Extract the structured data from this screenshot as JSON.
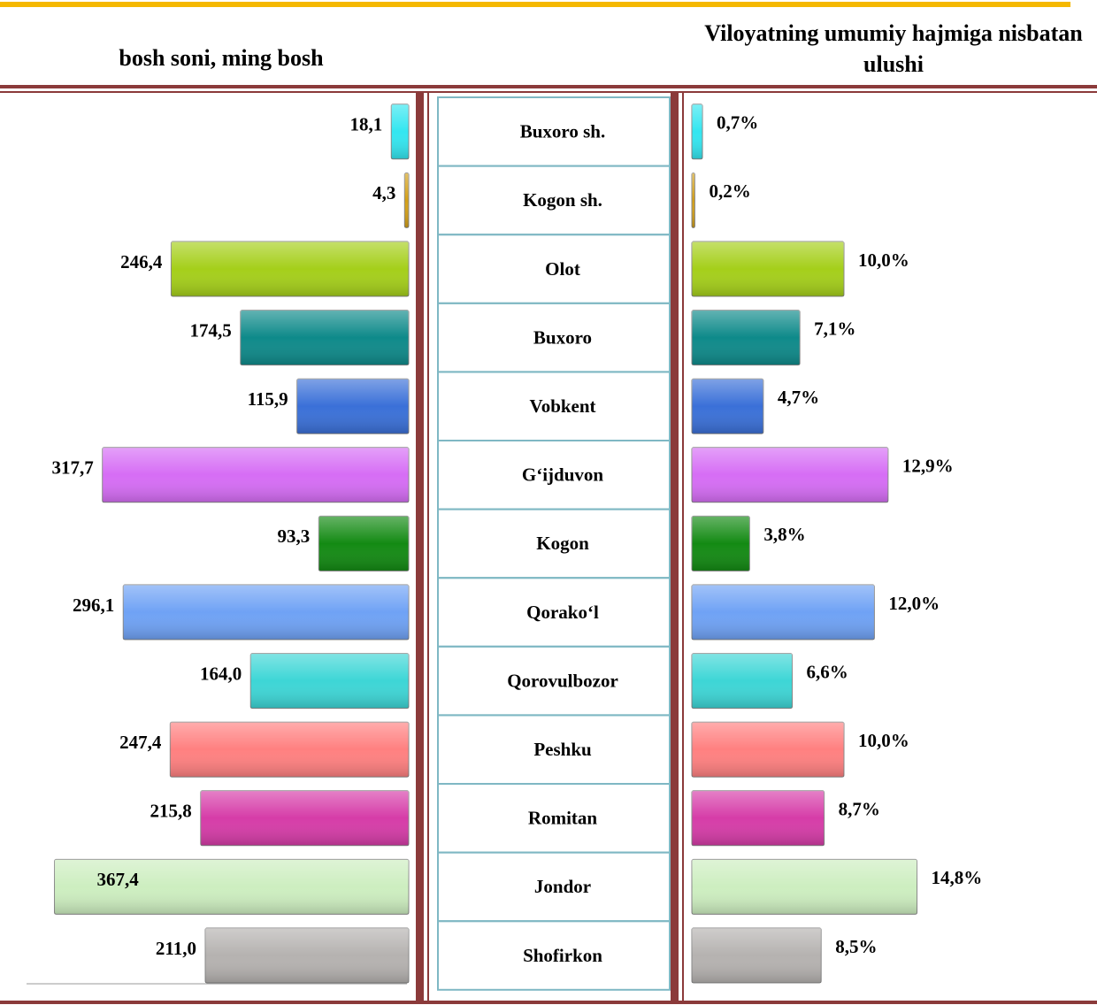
{
  "chart_data": {
    "type": "bar",
    "categories": [
      "Buxoro sh.",
      "Kogon sh.",
      "Olot",
      "Buxoro",
      "Vobkent",
      "G‘ijduvon",
      "Kogon",
      "Qorako‘l",
      "Qorovulbozor",
      "Peshku",
      "Romitan",
      "Jondor",
      "Shofirkon"
    ],
    "colors": [
      "#33e6f0",
      "#d4a017",
      "#a5cf1a",
      "#0e8a8a",
      "#3a70d8",
      "#d66df5",
      "#138a13",
      "#6fa2f5",
      "#3dd6d6",
      "#ff8080",
      "#d63ca8",
      "#cdeec0",
      "#b5b2b0"
    ],
    "series": [
      {
        "name": "bosh soni, ming bosh",
        "xlim": [
          0,
          400
        ],
        "values": [
          18.1,
          4.3,
          246.4,
          174.5,
          115.9,
          317.7,
          93.3,
          296.1,
          164.0,
          247.4,
          215.8,
          367.4,
          211.0
        ],
        "value_labels": [
          "18,1",
          "4,3",
          "246,4",
          "174,5",
          "115,9",
          "317,7",
          "93,3",
          "296,1",
          "164,0",
          "247,4",
          "215,8",
          "367,4",
          "211,0"
        ]
      },
      {
        "name": "Viloyatning umumiy hajmiga nisbatan ulushi",
        "xlim": [
          0,
          20
        ],
        "values": [
          0.7,
          0.2,
          10.0,
          7.1,
          4.7,
          12.9,
          3.8,
          12.0,
          6.6,
          10.0,
          8.7,
          14.8,
          8.5
        ],
        "value_labels": [
          "0,7%",
          "0,2%",
          "10,0%",
          "7,1%",
          "4,7%",
          "12,9%",
          "3,8%",
          "12,0%",
          "6,6%",
          "10,0%",
          "8,7%",
          "14,8%",
          "8,5%"
        ]
      }
    ]
  }
}
